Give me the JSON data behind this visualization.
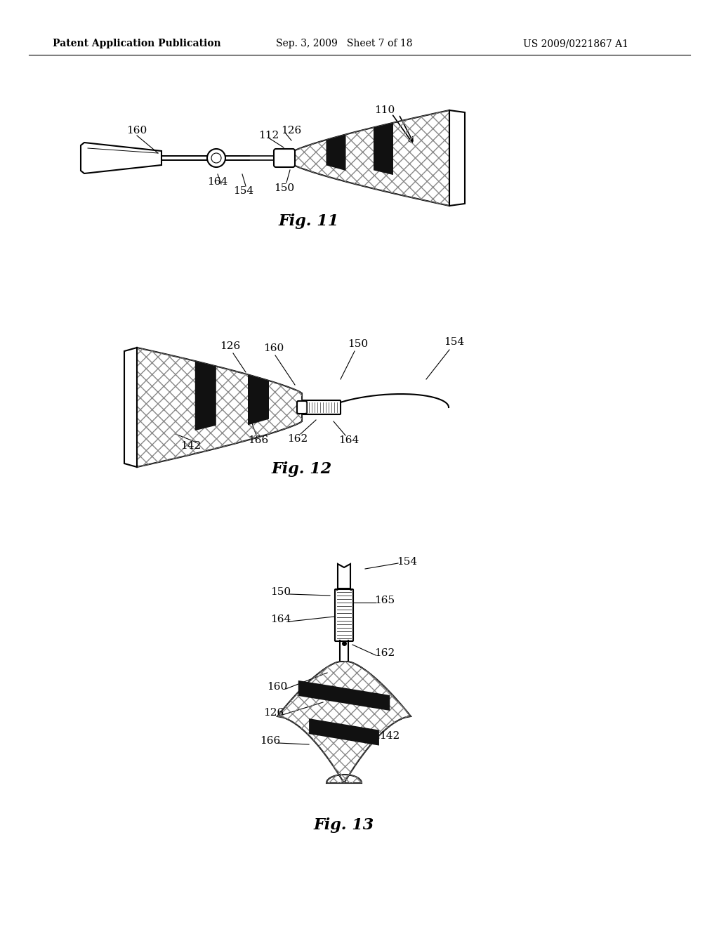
{
  "background_color": "#ffffff",
  "header_left": "Patent Application Publication",
  "header_mid": "Sep. 3, 2009   Sheet 7 of 18",
  "header_right": "US 2009/0221867 A1",
  "fig11_caption": "Fig. 11",
  "fig12_caption": "Fig. 12",
  "fig13_caption": "Fig. 13",
  "line_color": "#000000",
  "text_color": "#000000",
  "lw": 1.5,
  "lw_thin": 0.8
}
